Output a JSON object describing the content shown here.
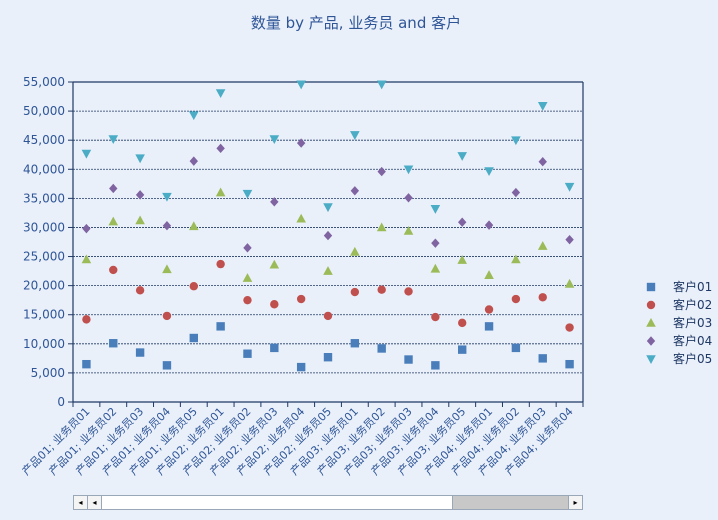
{
  "chart_data": {
    "type": "scatter",
    "title": "数量 by 产品, 业务员 and 客户",
    "categories": [
      "产品01; 业务员01",
      "产品01; 业务员02",
      "产品01; 业务员03",
      "产品01; 业务员04",
      "产品01; 业务员05",
      "产品02; 业务员01",
      "产品02; 业务员02",
      "产品02; 业务员03",
      "产品02; 业务员04",
      "产品02; 业务员05",
      "产品03; 业务员01",
      "产品03; 业务员02",
      "产品03; 业务员03",
      "产品03; 业务员04",
      "产品03; 业务员05",
      "产品04; 业务员01",
      "产品04; 业务员02",
      "产品04; 业务员03",
      "产品04; 业务员04"
    ],
    "ylim": [
      0,
      55000
    ],
    "yticks": [
      "0",
      "5,000",
      "10,000",
      "15,000",
      "20,000",
      "25,000",
      "30,000",
      "35,000",
      "40,000",
      "45,000",
      "50,000",
      "55,000"
    ],
    "grid": true,
    "legend_position": "right",
    "series": [
      {
        "name": "客户01",
        "color": "#4a7ebb",
        "marker": "square",
        "values": [
          6500,
          10100,
          8500,
          6300,
          11000,
          13000,
          8300,
          9300,
          6000,
          7700,
          10100,
          9200,
          7300,
          6300,
          9000,
          13000,
          9300,
          7500,
          6500
        ]
      },
      {
        "name": "客户02",
        "color": "#c0504d",
        "marker": "circle",
        "values": [
          14200,
          22700,
          19200,
          14800,
          19900,
          23700,
          17500,
          16800,
          17700,
          14800,
          18900,
          19300,
          19000,
          14600,
          13600,
          15900,
          17700,
          18000,
          12800
        ]
      },
      {
        "name": "客户03",
        "color": "#9bbb59",
        "marker": "triangle-up",
        "values": [
          24500,
          31000,
          31200,
          22800,
          30200,
          36000,
          21300,
          23600,
          31500,
          22500,
          25800,
          30000,
          29400,
          22900,
          24400,
          21800,
          24500,
          26800,
          20300
        ]
      },
      {
        "name": "客户04",
        "color": "#8064a2",
        "marker": "diamond",
        "values": [
          29800,
          36700,
          35600,
          30300,
          41400,
          43600,
          26500,
          34400,
          44500,
          28600,
          36300,
          39600,
          35100,
          27300,
          30900,
          30400,
          36000,
          41300,
          27900
        ]
      },
      {
        "name": "客户05",
        "color": "#4bacc6",
        "marker": "triangle-down",
        "values": [
          42700,
          45200,
          41900,
          35300,
          49300,
          53100,
          35800,
          45200,
          54600,
          33500,
          45900,
          54600,
          40000,
          33200,
          42300,
          39700,
          45000,
          50900,
          37000
        ]
      }
    ]
  },
  "scrollbar": {
    "left_arrow": "◂",
    "right_arrow": "▸",
    "first_button": "◂",
    "thumb_start": 0.75,
    "thumb_end": 1.0
  }
}
